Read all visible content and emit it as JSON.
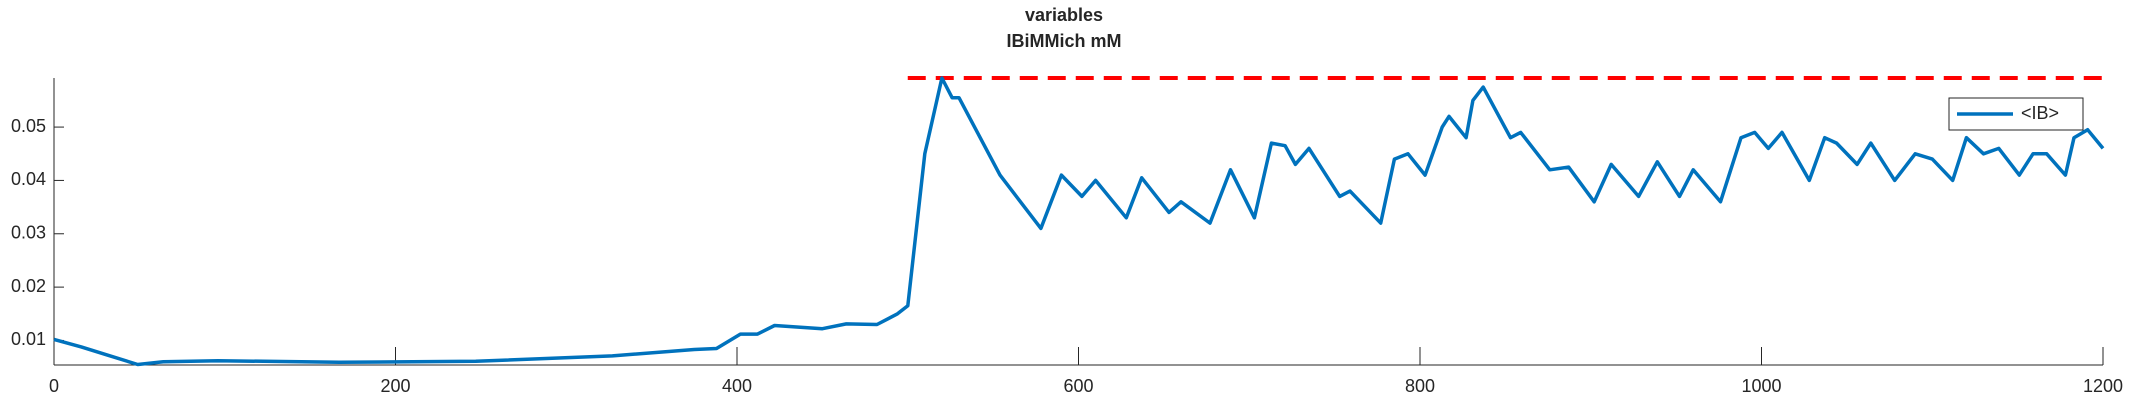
{
  "chart_data": {
    "type": "line",
    "title": [
      "variables",
      "IBiMMich mM"
    ],
    "x": [
      0,
      16,
      32,
      49,
      64,
      96,
      167,
      247,
      327,
      375,
      388,
      402,
      412,
      422,
      450,
      464,
      482,
      494,
      500,
      510,
      520,
      526,
      530,
      554,
      578,
      590,
      602,
      610,
      628,
      637,
      653,
      660,
      677,
      689,
      703,
      713,
      721,
      727,
      735,
      753,
      759,
      777,
      785,
      793,
      803,
      813,
      817,
      827,
      831,
      837,
      853,
      859,
      876,
      887,
      902,
      912,
      928,
      939,
      952,
      960,
      976,
      988,
      996,
      1004,
      1012,
      1028,
      1037,
      1044,
      1056,
      1064,
      1078,
      1090,
      1100,
      1112,
      1120,
      1130,
      1139,
      1151,
      1159,
      1167,
      1178,
      1183,
      1191,
      1200
    ],
    "series": [
      {
        "name": "<IB>",
        "color": "#0072bd",
        "values": [
          0.0102,
          0.0088,
          0.0072,
          0.0055,
          0.006,
          0.0062,
          0.0059,
          0.0061,
          0.0071,
          0.0083,
          0.0085,
          0.0112,
          0.0112,
          0.0128,
          0.0122,
          0.0131,
          0.013,
          0.015,
          0.0165,
          0.045,
          0.0592,
          0.0555,
          0.0555,
          0.041,
          0.031,
          0.041,
          0.037,
          0.04,
          0.033,
          0.0405,
          0.034,
          0.036,
          0.032,
          0.042,
          0.033,
          0.047,
          0.0465,
          0.043,
          0.046,
          0.037,
          0.038,
          0.032,
          0.044,
          0.045,
          0.041,
          0.05,
          0.052,
          0.048,
          0.055,
          0.0575,
          0.048,
          0.049,
          0.042,
          0.0425,
          0.036,
          0.043,
          0.037,
          0.0435,
          0.037,
          0.042,
          0.036,
          0.048,
          0.049,
          0.046,
          0.049,
          0.04,
          0.048,
          0.047,
          0.043,
          0.047,
          0.04,
          0.045,
          0.044,
          0.04,
          0.048,
          0.045,
          0.046,
          0.041,
          0.045,
          0.045,
          0.041,
          0.048,
          0.0495,
          0.046
        ]
      }
    ],
    "reference_line": {
      "value": 0.0592,
      "x": [
        500,
        1200
      ],
      "color": "#ff0000"
    },
    "xlim": [
      0,
      1200
    ],
    "xticks": [
      0,
      200,
      400,
      600,
      800,
      1000,
      1200
    ],
    "ylim": [
      0.0054,
      0.0592
    ],
    "yticks": [
      0.01,
      0.02,
      0.03,
      0.04,
      0.05
    ],
    "legend": "upper right"
  }
}
